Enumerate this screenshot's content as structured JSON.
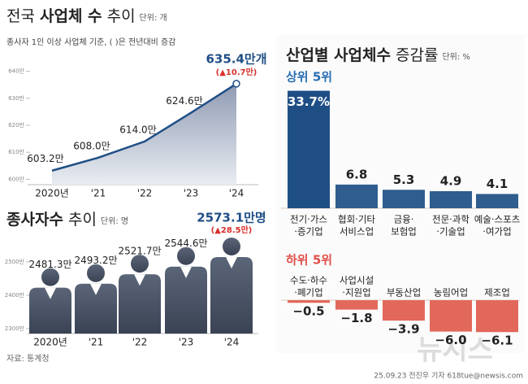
{
  "chart_data": [
    {
      "type": "line",
      "title": [
        "전국 ",
        "사업체 수",
        " 추이"
      ],
      "unit": "단위: 개",
      "subtitle": "종사자 1인 이상 사업체 기준, ( )은 전년대비 증감",
      "categories": [
        "2020년",
        "'21",
        "'22",
        "'23",
        "'24"
      ],
      "values": [
        603.2,
        608.0,
        614.0,
        624.6,
        635.4
      ],
      "value_labels": [
        "603.2만",
        "608.0만",
        "614.0만",
        "624.6만",
        "635.4만개"
      ],
      "annotation": "(▲10.7만)",
      "color": "#1f4e85",
      "ylim": [
        598,
        642
      ],
      "yticks": [
        {
          "value": 600,
          "label": "600만"
        },
        {
          "value": 610,
          "label": "610만"
        },
        {
          "value": 620,
          "label": "620만"
        },
        {
          "value": 630,
          "label": "630만"
        },
        {
          "value": 640,
          "label": "640만"
        }
      ]
    },
    {
      "type": "pictogram",
      "title": [
        "종사자수",
        " 추이"
      ],
      "unit": "단위: 명",
      "categories": [
        "2020년",
        "'21",
        "'22",
        "'23",
        "'24"
      ],
      "values": [
        2481.3,
        2493.2,
        2521.7,
        2544.6,
        2573.1
      ],
      "value_labels": [
        "2481.3만",
        "2493.2만",
        "2521.7만",
        "2544.6만",
        "2573.1만명"
      ],
      "annotation": "(▲28.5만)",
      "color": "#4b5567",
      "ylim": [
        2285,
        2600
      ],
      "yticks": [
        {
          "value": 2300,
          "label": "2300만"
        },
        {
          "value": 2400,
          "label": "2400만"
        },
        {
          "value": 2500,
          "label": "2500만"
        }
      ]
    },
    {
      "type": "bar",
      "title": [
        "산업별 사업체수",
        " 증감률"
      ],
      "unit": "단위: %",
      "subtitle": "상위 5위",
      "subtitle_color": "#2a6fb3",
      "categories": [
        [
          "전기·가스",
          "·증기업"
        ],
        [
          "협회·기타",
          "서비스업"
        ],
        [
          "금융·",
          "보험업"
        ],
        [
          "전문·과학",
          "·기술업"
        ],
        [
          "예술·스포츠",
          "·여가업"
        ]
      ],
      "values": [
        33.7,
        6.8,
        5.3,
        4.9,
        4.1
      ],
      "value_labels": [
        "33.7%",
        "6.8",
        "5.3",
        "4.9",
        "4.1"
      ],
      "color": "#2e5d8e",
      "ylim": [
        0,
        35
      ]
    },
    {
      "type": "bar",
      "subtitle": "하위 5위",
      "subtitle_color": "#e0504a",
      "categories": [
        [
          "수도·하수",
          "·폐기업"
        ],
        [
          "사업시설",
          "·지원업"
        ],
        [
          "부동산업"
        ],
        [
          "농림어업"
        ],
        [
          "제조업"
        ]
      ],
      "values": [
        -0.5,
        -1.8,
        -3.9,
        -6.0,
        -6.1
      ],
      "value_labels": [
        "−0.5",
        "−1.8",
        "−3.9",
        "−6.0",
        "−6.1"
      ],
      "color": "#e2685b",
      "ylim": [
        -7,
        0
      ]
    }
  ],
  "source": "자료: 통계청",
  "credit": "25.09.23 전진우 기자 618tue@newsis.com",
  "logo": "뉴시스"
}
